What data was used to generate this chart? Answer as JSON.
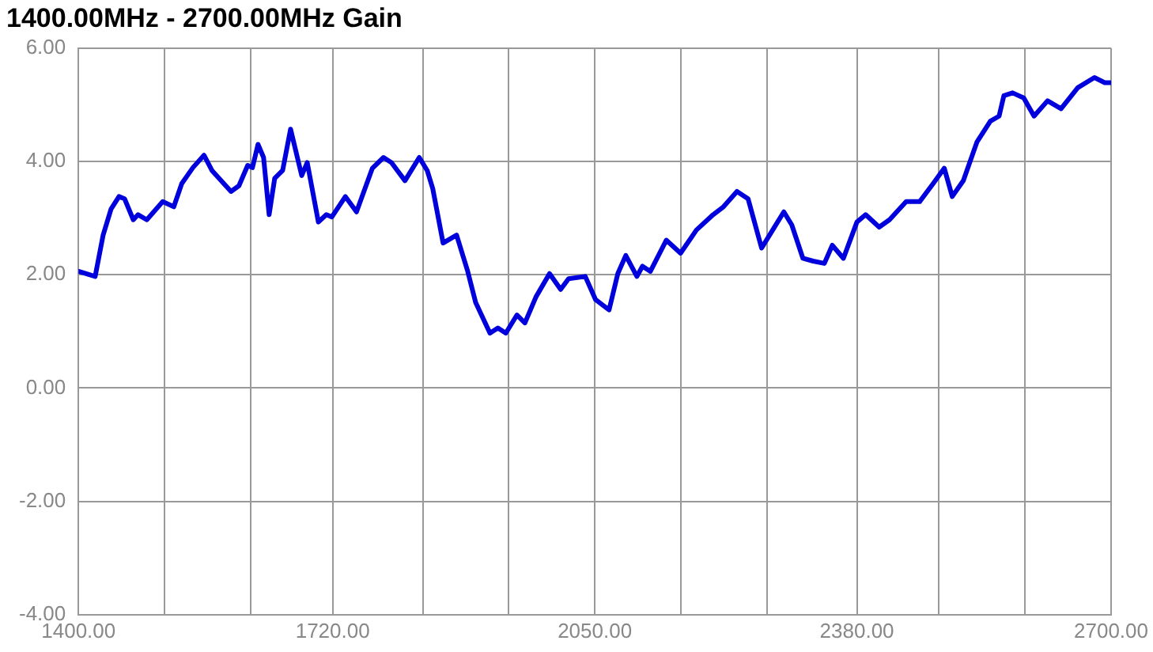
{
  "chart_data": {
    "type": "line",
    "title": "1400.00MHz - 2700.00MHz Gain",
    "x": [
      1400,
      1421,
      1431,
      1441,
      1451,
      1458,
      1469,
      1475,
      1486,
      1506,
      1520,
      1530,
      1544,
      1558,
      1568,
      1592,
      1602,
      1613,
      1619,
      1626,
      1633,
      1640,
      1647,
      1657,
      1667,
      1674,
      1681,
      1688,
      1702,
      1712,
      1719,
      1736,
      1750,
      1770,
      1784,
      1794,
      1811,
      1829,
      1839,
      1846,
      1859,
      1876,
      1890,
      1900,
      1918,
      1928,
      1938,
      1952,
      1962,
      1976,
      1993,
      2007,
      2017,
      2038,
      2051,
      2068,
      2079,
      2089,
      2103,
      2110,
      2120,
      2140,
      2158,
      2178,
      2199,
      2212,
      2229,
      2243,
      2260,
      2274,
      2288,
      2298,
      2312,
      2325,
      2339,
      2349,
      2363,
      2380,
      2391,
      2408,
      2421,
      2442,
      2459,
      2476,
      2490,
      2500,
      2514,
      2531,
      2548,
      2559,
      2565,
      2576,
      2590,
      2603,
      2620,
      2637,
      2658,
      2679,
      2692,
      2699
    ],
    "series": [
      {
        "color": "#0000dd",
        "values": [
          2.06,
          1.97,
          2.7,
          3.16,
          3.38,
          3.34,
          2.97,
          3.06,
          2.97,
          3.29,
          3.2,
          3.61,
          3.89,
          4.11,
          3.84,
          3.47,
          3.57,
          3.93,
          3.89,
          4.3,
          4.07,
          3.06,
          3.7,
          3.84,
          4.57,
          4.16,
          3.75,
          3.98,
          2.93,
          3.06,
          3.02,
          3.38,
          3.11,
          3.88,
          4.07,
          3.98,
          3.66,
          4.07,
          3.84,
          3.52,
          2.56,
          2.7,
          2.06,
          1.51,
          0.97,
          1.06,
          0.97,
          1.29,
          1.15,
          1.61,
          2.02,
          1.74,
          1.93,
          1.97,
          1.56,
          1.38,
          2.02,
          2.34,
          1.97,
          2.15,
          2.06,
          2.61,
          2.38,
          2.79,
          3.06,
          3.2,
          3.47,
          3.34,
          2.47,
          2.79,
          3.11,
          2.88,
          2.29,
          2.24,
          2.2,
          2.52,
          2.29,
          2.93,
          3.06,
          2.84,
          2.97,
          3.29,
          3.29,
          3.61,
          3.88,
          3.38,
          3.66,
          4.34,
          4.71,
          4.8,
          5.16,
          5.21,
          5.12,
          4.8,
          5.07,
          4.93,
          5.3,
          5.48,
          5.39,
          5.39
        ]
      }
    ],
    "xlim": [
      1400,
      2700
    ],
    "xticks": [
      {
        "value": 1400,
        "label": "1400.00"
      },
      {
        "value": 1508.33,
        "label": null
      },
      {
        "value": 1616.67,
        "label": null
      },
      {
        "value": 1720,
        "label": "1720.00"
      },
      {
        "value": 1833.33,
        "label": null
      },
      {
        "value": 1941.67,
        "label": null
      },
      {
        "value": 2050,
        "label": "2050.00"
      },
      {
        "value": 2158.33,
        "label": null
      },
      {
        "value": 2266.67,
        "label": null
      },
      {
        "value": 2380,
        "label": "2380.00"
      },
      {
        "value": 2483.33,
        "label": null
      },
      {
        "value": 2591.67,
        "label": null
      },
      {
        "value": 2700,
        "label": "2700.00"
      }
    ],
    "ylim": [
      -4,
      6
    ],
    "yticks": [
      {
        "value": -4,
        "label": "-4.00"
      },
      {
        "value": -2,
        "label": "-2.00"
      },
      {
        "value": 0,
        "label": "0.00"
      },
      {
        "value": 2,
        "label": "2.00"
      },
      {
        "value": 4,
        "label": "4.00"
      },
      {
        "value": 6,
        "label": "6.00"
      }
    ],
    "grid": true,
    "legend": false,
    "marker": "none",
    "line_style": "solid"
  }
}
